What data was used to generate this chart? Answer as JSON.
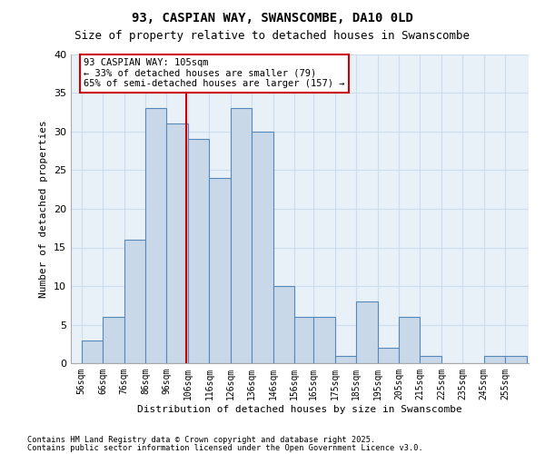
{
  "title1": "93, CASPIAN WAY, SWANSCOMBE, DA10 0LD",
  "title2": "Size of property relative to detached houses in Swanscombe",
  "xlabel": "Distribution of detached houses by size in Swanscombe",
  "ylabel": "Number of detached properties",
  "bin_labels": [
    "56sqm",
    "66sqm",
    "76sqm",
    "86sqm",
    "96sqm",
    "106sqm",
    "116sqm",
    "126sqm",
    "136sqm",
    "146sqm",
    "156sqm",
    "165sqm",
    "175sqm",
    "185sqm",
    "195sqm",
    "205sqm",
    "215sqm",
    "225sqm",
    "235sqm",
    "245sqm",
    "255sqm"
  ],
  "bin_left_edges": [
    56,
    66,
    76,
    86,
    96,
    106,
    116,
    126,
    136,
    146,
    156,
    165,
    175,
    185,
    195,
    205,
    215,
    225,
    235,
    245,
    255
  ],
  "bin_widths": [
    10,
    10,
    10,
    10,
    10,
    10,
    10,
    10,
    10,
    10,
    9,
    10,
    10,
    10,
    10,
    10,
    10,
    10,
    10,
    10,
    10
  ],
  "bar_heights": [
    3,
    6,
    16,
    33,
    31,
    29,
    24,
    33,
    30,
    10,
    6,
    6,
    1,
    8,
    2,
    6,
    1,
    0,
    0,
    1,
    1
  ],
  "bar_color": "#c8d8e8",
  "bar_edge_color": "#5588bb",
  "property_line_x": 105,
  "annotation_text": "93 CASPIAN WAY: 105sqm\n← 33% of detached houses are smaller (79)\n65% of semi-detached houses are larger (157) →",
  "annotation_box_color": "#ffffff",
  "annotation_box_edge": "#cc0000",
  "annotation_fontsize": 7.5,
  "line_color": "#cc0000",
  "ylim": [
    0,
    40
  ],
  "yticks": [
    0,
    5,
    10,
    15,
    20,
    25,
    30,
    35,
    40
  ],
  "grid_color": "#ccddee",
  "background_color": "#e8f0f8",
  "footer_line1": "Contains HM Land Registry data © Crown copyright and database right 2025.",
  "footer_line2": "Contains public sector information licensed under the Open Government Licence v3.0."
}
